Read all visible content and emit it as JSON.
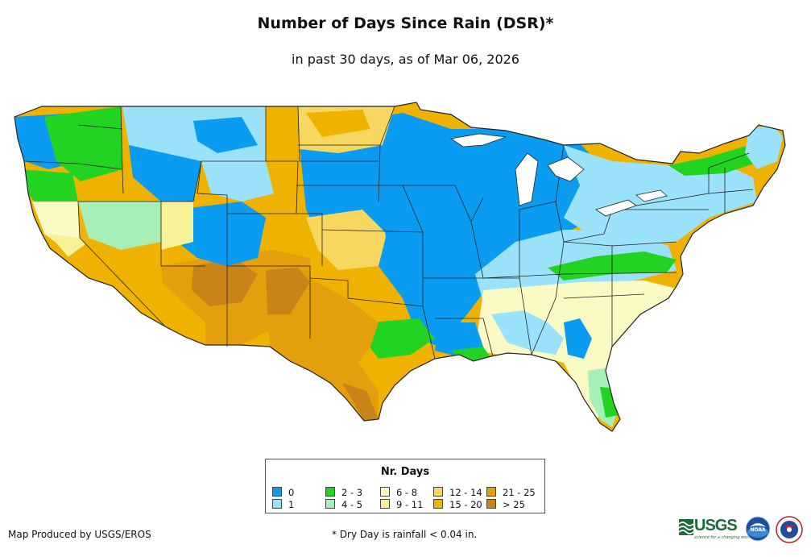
{
  "header": {
    "title": "Number of Days Since Rain (DSR)*",
    "subtitle": "in past 30 days, as of Mar 06, 2026"
  },
  "legend": {
    "title": "Nr. Days",
    "items": [
      {
        "label": "0",
        "color": "#0a9cf0"
      },
      {
        "label": "1",
        "color": "#9ae2fa"
      },
      {
        "label": "2 - 3",
        "color": "#22d322"
      },
      {
        "label": "4 - 5",
        "color": "#a6f0b8"
      },
      {
        "label": "6 - 8",
        "color": "#fafac4"
      },
      {
        "label": "9 - 11",
        "color": "#f6f096"
      },
      {
        "label": "12 - 14",
        "color": "#f6d860"
      },
      {
        "label": "15 - 20",
        "color": "#f0b200"
      },
      {
        "label": "21 - 25",
        "color": "#e4a00c"
      },
      {
        "label": "> 25",
        "color": "#c88418"
      }
    ]
  },
  "footer": {
    "credit": "Map Produced by USGS/EROS",
    "footnote": "* Dry Day is rainfall < 0.04 in.",
    "logos": {
      "usgs_text": "USGS",
      "usgs_tagline": "science for a changing world",
      "noaa_text": "NOAA"
    }
  }
}
